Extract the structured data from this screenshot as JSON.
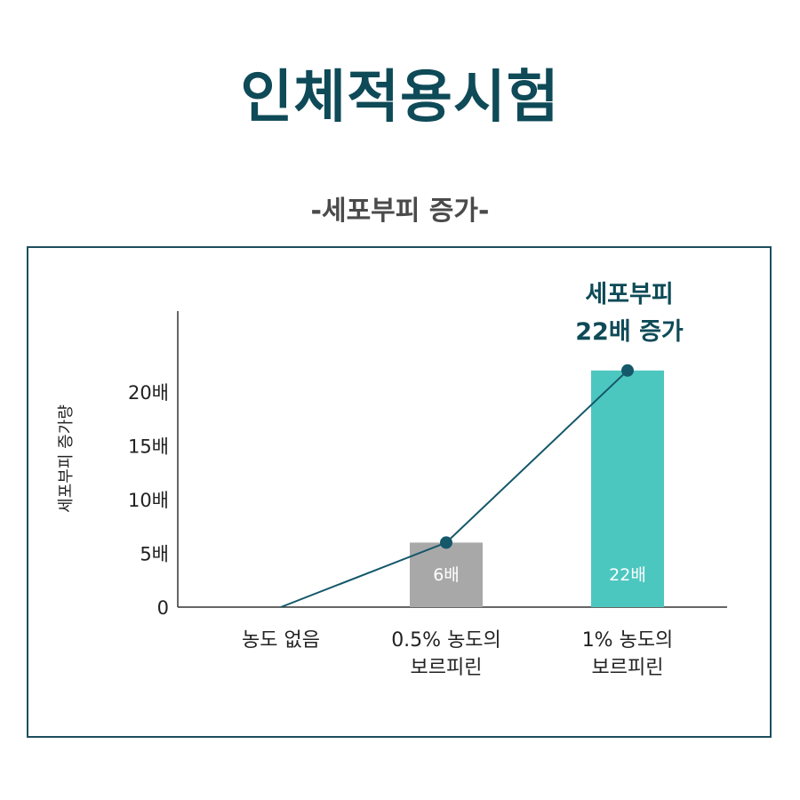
{
  "title": "인체적용시험",
  "subtitle": "-세포부피 증가-",
  "colors": {
    "title": "#0e4a57",
    "subtitle": "#4a4a4a",
    "frame": "#1d4e5e",
    "bar_gray": "#a8a8a8",
    "bar_teal": "#4cc7c0",
    "line": "#14586a",
    "callout": "#0e4a57"
  },
  "chart_data": {
    "type": "bar",
    "categories": [
      [
        "농도 없음"
      ],
      [
        "0.5% 농도의",
        "보르피린"
      ],
      [
        "1% 농도의",
        "보르피린"
      ]
    ],
    "values": [
      0,
      6,
      22
    ],
    "bar_labels": [
      "",
      "6배",
      "22배"
    ],
    "line_values": [
      0,
      6,
      22
    ],
    "ylabel": "세포부피 증가량",
    "yticks": [
      {
        "value": 0,
        "label": "0"
      },
      {
        "value": 5,
        "label": "5배"
      },
      {
        "value": 10,
        "label": "10배"
      },
      {
        "value": 15,
        "label": "15배"
      },
      {
        "value": 20,
        "label": "20배"
      }
    ],
    "ylim": [
      0,
      27
    ],
    "annotation": [
      "세포부피",
      "22배 증가"
    ]
  }
}
